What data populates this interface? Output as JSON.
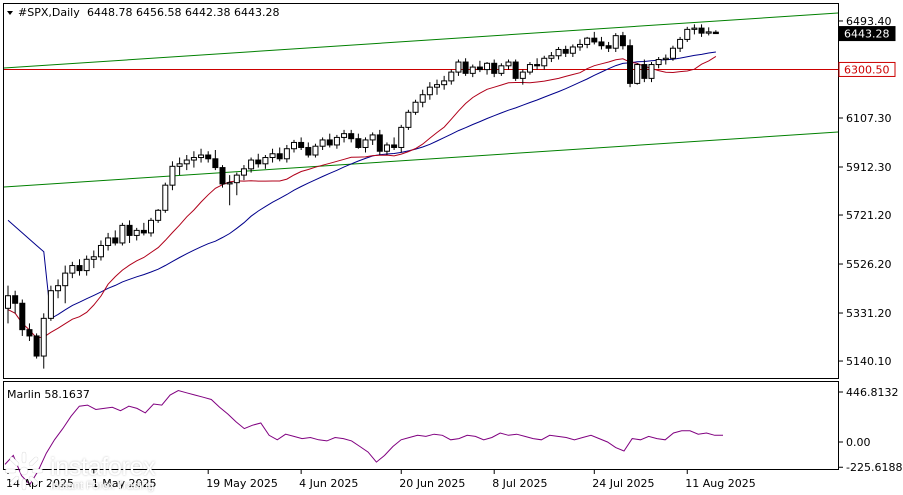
{
  "header": {
    "symbol": "#SPX,Daily",
    "ohlc": "6448.78 6456.58 6442.38 6443.28"
  },
  "chart_data": {
    "type": "candlestick",
    "y_ticks": [
      5140.1,
      5331.2,
      5526.2,
      5721.2,
      5912.3,
      6107.3,
      6493.4
    ],
    "price_labels": [
      {
        "text": "6443.28",
        "value": 6443.28,
        "style": "current"
      },
      {
        "text": "6300.50",
        "value": 6300.5,
        "style": "level"
      }
    ],
    "horizontal_level": 6300.5,
    "x_labels": [
      "14 Apr 2025",
      "1 May 2025",
      "19 May 2025",
      "4 Jun 2025",
      "20 Jun 2025",
      "8 Jul 2025",
      "24 Jul 2025",
      "11 Aug 2025"
    ],
    "candles": [
      [
        5350,
        5440,
        5290,
        5400
      ],
      [
        5400,
        5420,
        5330,
        5370
      ],
      [
        5370,
        5385,
        5240,
        5265
      ],
      [
        5265,
        5290,
        5220,
        5240
      ],
      [
        5240,
        5250,
        5150,
        5160
      ],
      [
        5160,
        5330,
        5110,
        5310
      ],
      [
        5310,
        5440,
        5300,
        5420
      ],
      [
        5420,
        5465,
        5390,
        5440
      ],
      [
        5440,
        5520,
        5370,
        5490
      ],
      [
        5490,
        5535,
        5470,
        5520
      ],
      [
        5520,
        5545,
        5480,
        5500
      ],
      [
        5500,
        5560,
        5480,
        5545
      ],
      [
        5545,
        5580,
        5510,
        5555
      ],
      [
        5555,
        5620,
        5540,
        5600
      ],
      [
        5600,
        5650,
        5580,
        5630
      ],
      [
        5630,
        5660,
        5600,
        5610
      ],
      [
        5610,
        5690,
        5600,
        5680
      ],
      [
        5680,
        5700,
        5610,
        5640
      ],
      [
        5640,
        5670,
        5620,
        5660
      ],
      [
        5660,
        5690,
        5640,
        5650
      ],
      [
        5650,
        5710,
        5635,
        5700
      ],
      [
        5700,
        5745,
        5690,
        5740
      ],
      [
        5740,
        5850,
        5730,
        5840
      ],
      [
        5840,
        5935,
        5820,
        5915
      ],
      [
        5915,
        5950,
        5880,
        5925
      ],
      [
        5925,
        5960,
        5900,
        5940
      ],
      [
        5940,
        5975,
        5910,
        5950
      ],
      [
        5950,
        5985,
        5930,
        5960
      ],
      [
        5960,
        5975,
        5930,
        5945
      ],
      [
        5945,
        5980,
        5900,
        5910
      ],
      [
        5910,
        5920,
        5830,
        5845
      ],
      [
        5845,
        5880,
        5760,
        5850
      ],
      [
        5850,
        5890,
        5800,
        5880
      ],
      [
        5880,
        5920,
        5860,
        5905
      ],
      [
        5905,
        5950,
        5890,
        5940
      ],
      [
        5940,
        5965,
        5910,
        5925
      ],
      [
        5925,
        5960,
        5905,
        5950
      ],
      [
        5950,
        5985,
        5930,
        5965
      ],
      [
        5965,
        5990,
        5935,
        5945
      ],
      [
        5945,
        6000,
        5930,
        5985
      ],
      [
        5985,
        6020,
        5970,
        6010
      ],
      [
        6010,
        6030,
        5980,
        5990
      ],
      [
        5990,
        6010,
        5950,
        5960
      ],
      [
        5960,
        6005,
        5950,
        5995
      ],
      [
        5995,
        6030,
        5980,
        6020
      ],
      [
        6020,
        6045,
        5990,
        6000
      ],
      [
        6000,
        6040,
        5985,
        6030
      ],
      [
        6030,
        6060,
        6010,
        6045
      ],
      [
        6045,
        6060,
        6010,
        6025
      ],
      [
        6025,
        6045,
        5985,
        5990
      ],
      [
        5990,
        6030,
        5970,
        6020
      ],
      [
        6020,
        6050,
        6000,
        6040
      ],
      [
        6040,
        6060,
        5960,
        5975
      ],
      [
        5975,
        6010,
        5960,
        6000
      ],
      [
        6000,
        6030,
        5980,
        5990
      ],
      [
        5990,
        6080,
        5970,
        6070
      ],
      [
        6070,
        6140,
        6060,
        6130
      ],
      [
        6130,
        6180,
        6120,
        6170
      ],
      [
        6170,
        6220,
        6150,
        6200
      ],
      [
        6200,
        6250,
        6180,
        6230
      ],
      [
        6230,
        6260,
        6200,
        6240
      ],
      [
        6240,
        6275,
        6220,
        6255
      ],
      [
        6255,
        6300,
        6240,
        6290
      ],
      [
        6290,
        6340,
        6275,
        6330
      ],
      [
        6330,
        6345,
        6275,
        6285
      ],
      [
        6285,
        6320,
        6270,
        6310
      ],
      [
        6310,
        6335,
        6290,
        6300
      ],
      [
        6300,
        6330,
        6280,
        6325
      ],
      [
        6325,
        6340,
        6270,
        6285
      ],
      [
        6285,
        6325,
        6275,
        6315
      ],
      [
        6315,
        6340,
        6300,
        6330
      ],
      [
        6330,
        6340,
        6255,
        6265
      ],
      [
        6265,
        6300,
        6240,
        6290
      ],
      [
        6290,
        6330,
        6280,
        6320
      ],
      [
        6320,
        6345,
        6300,
        6315
      ],
      [
        6315,
        6355,
        6300,
        6345
      ],
      [
        6345,
        6370,
        6330,
        6355
      ],
      [
        6355,
        6390,
        6340,
        6380
      ],
      [
        6380,
        6395,
        6350,
        6365
      ],
      [
        6365,
        6400,
        6350,
        6390
      ],
      [
        6390,
        6420,
        6375,
        6400
      ],
      [
        6400,
        6430,
        6385,
        6425
      ],
      [
        6425,
        6450,
        6400,
        6410
      ],
      [
        6410,
        6430,
        6380,
        6395
      ],
      [
        6395,
        6410,
        6370,
        6385
      ],
      [
        6385,
        6445,
        6370,
        6435
      ],
      [
        6435,
        6450,
        6380,
        6395
      ],
      [
        6395,
        6420,
        6230,
        6245
      ],
      [
        6245,
        6325,
        6240,
        6320
      ],
      [
        6320,
        6340,
        6250,
        6265
      ],
      [
        6265,
        6330,
        6250,
        6320
      ],
      [
        6320,
        6350,
        6305,
        6340
      ],
      [
        6340,
        6360,
        6320,
        6345
      ],
      [
        6345,
        6395,
        6335,
        6385
      ],
      [
        6385,
        6430,
        6370,
        6420
      ],
      [
        6420,
        6470,
        6410,
        6460
      ],
      [
        6460,
        6480,
        6440,
        6465
      ],
      [
        6465,
        6480,
        6430,
        6445
      ],
      [
        6445,
        6468,
        6436,
        6450
      ],
      [
        6448.78,
        6456.58,
        6442.38,
        6443.28
      ]
    ],
    "oscillator": {
      "label": "Marlin 58.1637",
      "ticks": [
        446.8132,
        0.0,
        -225.6188
      ],
      "values": [
        -200,
        -120,
        -300,
        -380,
        -260,
        -100,
        20,
        120,
        230,
        320,
        330,
        290,
        300,
        310,
        280,
        320,
        300,
        260,
        340,
        330,
        420,
        460,
        440,
        420,
        400,
        380,
        310,
        250,
        180,
        120,
        150,
        170,
        60,
        20,
        70,
        50,
        30,
        40,
        20,
        10,
        40,
        30,
        10,
        -40,
        -90,
        -180,
        -120,
        -40,
        20,
        40,
        60,
        50,
        70,
        60,
        20,
        30,
        60,
        50,
        20,
        40,
        80,
        60,
        70,
        50,
        30,
        20,
        60,
        50,
        40,
        20,
        40,
        60,
        30,
        0,
        -50,
        -80,
        30,
        20,
        50,
        30,
        20,
        80,
        100,
        100,
        70,
        80,
        60,
        60
      ]
    },
    "indicators": [
      {
        "name": "",
        "color": "#000080"
      },
      {
        "name": "",
        "color": "#aa0000"
      },
      {
        "name": "",
        "color": "#008000"
      }
    ]
  },
  "logo": {
    "name": "instaforex",
    "tagline": "Instant Forex Trading"
  },
  "colors": {
    "level_line": "#cc0000",
    "channel": "#008000",
    "slow_ma": "#00008b",
    "fast_ma": "#b0001a",
    "oscillator": "#800080"
  }
}
